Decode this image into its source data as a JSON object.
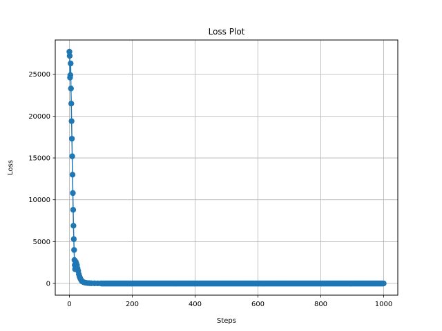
{
  "chart_data": {
    "type": "line",
    "title": "Loss Plot",
    "xlabel": "Steps",
    "ylabel": "Loss",
    "grid": true,
    "xlim": [
      -45,
      1045
    ],
    "ylim": [
      -1400,
      29100
    ],
    "x_ticks": [
      0,
      200,
      400,
      600,
      800,
      1000
    ],
    "y_ticks": [
      0,
      5000,
      10000,
      15000,
      20000,
      25000
    ],
    "x_tick_labels": [
      "0",
      "200",
      "400",
      "600",
      "800",
      "1000"
    ],
    "y_tick_labels": [
      "0",
      "5000",
      "10000",
      "15000",
      "20000",
      "25000"
    ],
    "series_color": "#1f77b4",
    "marker": "circle",
    "series": [
      {
        "x": [
          0,
          1,
          2,
          3,
          4,
          5,
          6,
          7,
          8,
          9,
          10,
          11,
          12,
          13,
          14,
          15,
          16,
          17,
          18,
          19,
          20,
          22,
          24,
          26,
          28,
          30,
          32,
          34,
          36,
          38,
          40,
          45,
          50,
          55,
          60,
          65,
          70,
          80,
          90,
          100
        ],
        "y": [
          27700,
          27200,
          24600,
          24900,
          26300,
          23300,
          21500,
          19400,
          17300,
          15200,
          13000,
          10800,
          8800,
          6900,
          5300,
          4000,
          2800,
          2200,
          1700,
          2100,
          2600,
          2400,
          2200,
          1800,
          1500,
          1100,
          850,
          650,
          500,
          380,
          250,
          150,
          90,
          60,
          40,
          30,
          20,
          12,
          8,
          5
        ],
        "tail_from": 100,
        "tail_to": 1000,
        "tail_value": 0
      }
    ]
  }
}
